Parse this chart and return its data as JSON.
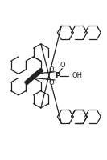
{
  "bg_color": "#ffffff",
  "line_color": "#222222",
  "lw": 0.9,
  "figsize": [
    1.33,
    2.0
  ],
  "dpi": 100,
  "P_label": "P",
  "O_label": "O",
  "OH_label": "OH",
  "label_fontsize": 6.0
}
